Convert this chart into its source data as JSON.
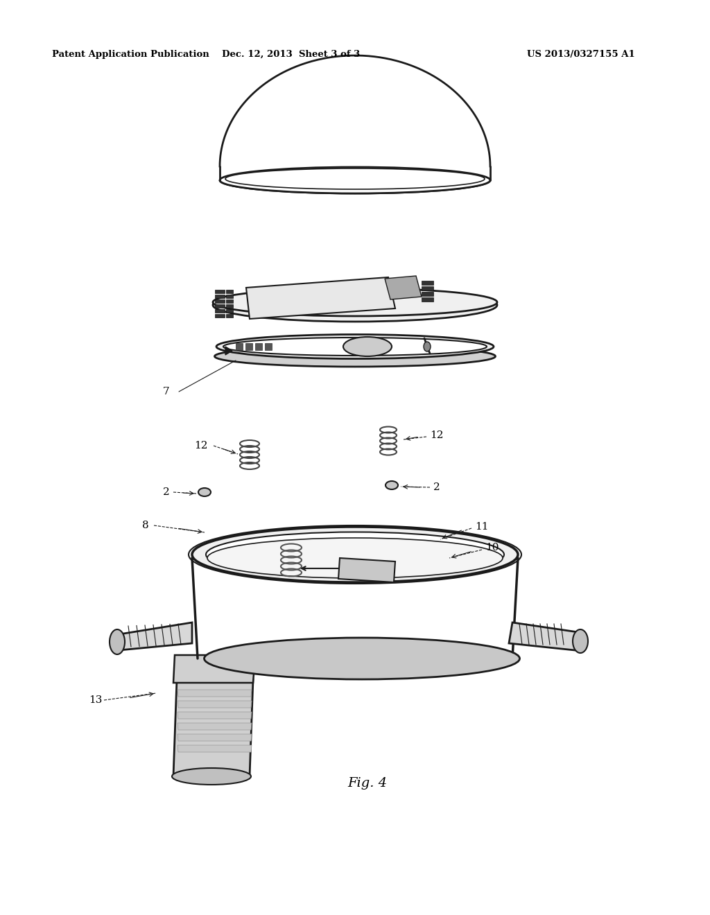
{
  "bg_color": "#ffffff",
  "title_left": "Patent Application Publication",
  "title_center": "Dec. 12, 2013  Sheet 3 of 3",
  "title_right": "US 2013/0327155 A1",
  "fig_label": "Fig. 4",
  "line_color": "#1a1a1a",
  "gray_fill": "#d8d8d8",
  "light_fill": "#f0f0f0",
  "white_fill": "#ffffff"
}
